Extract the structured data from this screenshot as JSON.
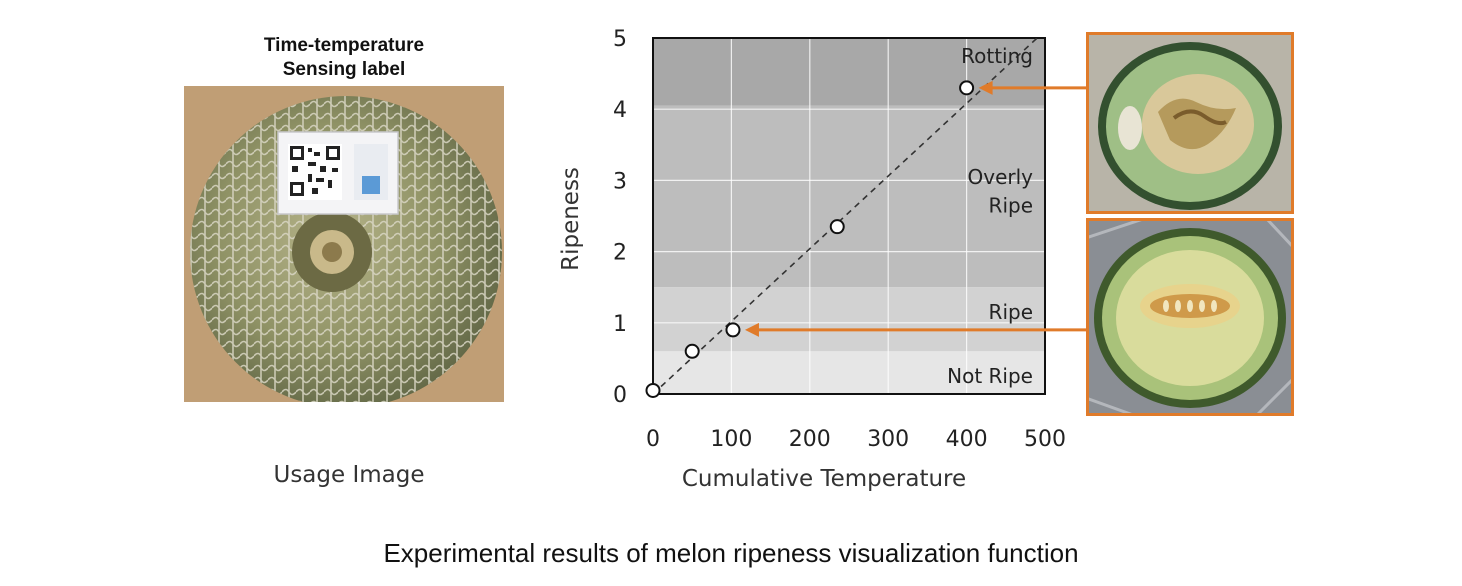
{
  "left_panel": {
    "label_title_line1": "Time-temperature",
    "label_title_line2": "Sensing label",
    "caption": "Usage Image"
  },
  "figure_caption": "Experimental results of melon ripeness visualization function",
  "chart_data": {
    "type": "scatter",
    "title": "",
    "xlabel": "Cumulative Temperature",
    "ylabel": "Ripeness",
    "xlim": [
      0,
      500
    ],
    "ylim": [
      0,
      5
    ],
    "xticks": [
      0,
      100,
      200,
      300,
      400,
      500
    ],
    "yticks": [
      0,
      1,
      2,
      3,
      4,
      5
    ],
    "grid": true,
    "points": [
      {
        "x": 0,
        "y": 0.05
      },
      {
        "x": 50,
        "y": 0.6
      },
      {
        "x": 102,
        "y": 0.9
      },
      {
        "x": 235,
        "y": 2.35
      },
      {
        "x": 400,
        "y": 4.3
      }
    ],
    "trendline": {
      "x": [
        0,
        490
      ],
      "y": [
        0,
        5
      ],
      "style": "dashed"
    },
    "bands": [
      {
        "label": "Not Ripe",
        "y0": 0,
        "y1": 0.6,
        "color": "#e6e6e6"
      },
      {
        "label": "Ripe",
        "y0": 0.6,
        "y1": 1.5,
        "color": "#d2d2d2"
      },
      {
        "label": "Overly Ripe",
        "y0": 1.5,
        "y1": 4.05,
        "color": "#bdbdbd"
      },
      {
        "label": "Rotting",
        "y0": 4.05,
        "y1": 5,
        "color": "#a8a8a8"
      }
    ],
    "band_label_rows": [
      {
        "text": "Rotting",
        "y": 4.75
      },
      {
        "text": "Overly",
        "y": 3.05
      },
      {
        "text": "Ripe",
        "y": 2.65
      },
      {
        "text": "Ripe",
        "y": 1.15
      },
      {
        "text": "Not Ripe",
        "y": 0.25
      }
    ],
    "arrows": [
      {
        "target_point": 4,
        "to_photo": "rotting"
      },
      {
        "target_point": 2,
        "to_photo": "ripe"
      }
    ],
    "accent_color": "#e07b2a"
  }
}
